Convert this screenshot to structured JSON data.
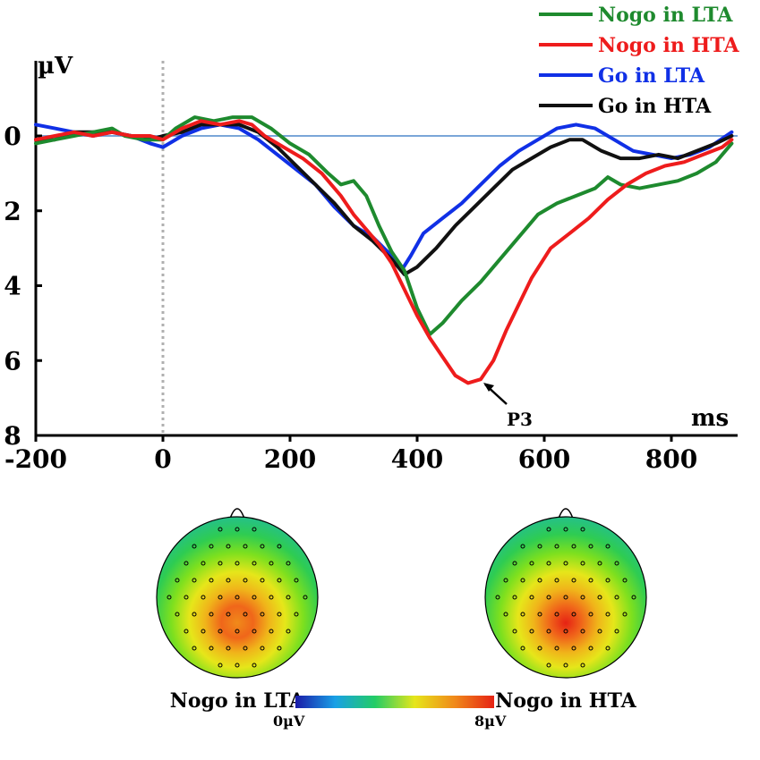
{
  "chart_data": [
    {
      "type": "line",
      "title": "",
      "xlabel": "ms",
      "ylabel": "µV",
      "xlim": [
        -200,
        900
      ],
      "ylim": [
        8,
        -2
      ],
      "y_inverted": true,
      "x_ticks": [
        -200,
        0,
        200,
        400,
        600,
        800
      ],
      "y_ticks": [
        0,
        2,
        4,
        6,
        8
      ],
      "x_tick_labels": [
        "-200",
        "0",
        "200",
        "400",
        "600",
        "800"
      ],
      "y_tick_labels": [
        "0",
        "2",
        "4",
        "6",
        "8"
      ],
      "zero_reference": 0,
      "stimulus_onset_ms": 0,
      "legend_position": "top-right",
      "series": [
        {
          "name": "Nogo in LTA",
          "color": "#1e8a2e",
          "points": [
            [
              -200,
              0.2
            ],
            [
              -170,
              0.1
            ],
            [
              -140,
              0.0
            ],
            [
              -110,
              -0.1
            ],
            [
              -80,
              -0.2
            ],
            [
              -60,
              0.0
            ],
            [
              -30,
              0.1
            ],
            [
              0,
              0.1
            ],
            [
              20,
              -0.2
            ],
            [
              50,
              -0.5
            ],
            [
              80,
              -0.4
            ],
            [
              110,
              -0.5
            ],
            [
              140,
              -0.5
            ],
            [
              170,
              -0.2
            ],
            [
              200,
              0.2
            ],
            [
              230,
              0.5
            ],
            [
              260,
              1.0
            ],
            [
              280,
              1.3
            ],
            [
              300,
              1.2
            ],
            [
              320,
              1.6
            ],
            [
              340,
              2.4
            ],
            [
              360,
              3.1
            ],
            [
              380,
              3.6
            ],
            [
              400,
              4.6
            ],
            [
              420,
              5.3
            ],
            [
              440,
              5.0
            ],
            [
              470,
              4.4
            ],
            [
              500,
              3.9
            ],
            [
              530,
              3.3
            ],
            [
              560,
              2.7
            ],
            [
              590,
              2.1
            ],
            [
              620,
              1.8
            ],
            [
              650,
              1.6
            ],
            [
              680,
              1.4
            ],
            [
              700,
              1.1
            ],
            [
              720,
              1.3
            ],
            [
              750,
              1.4
            ],
            [
              780,
              1.3
            ],
            [
              810,
              1.2
            ],
            [
              840,
              1.0
            ],
            [
              870,
              0.7
            ],
            [
              895,
              0.2
            ]
          ]
        },
        {
          "name": "Nogo in HTA",
          "color": "#ee1c1c",
          "points": [
            [
              -200,
              0.1
            ],
            [
              -170,
              0.0
            ],
            [
              -140,
              -0.1
            ],
            [
              -110,
              0.0
            ],
            [
              -80,
              -0.1
            ],
            [
              -50,
              0.0
            ],
            [
              -20,
              0.0
            ],
            [
              0,
              0.1
            ],
            [
              30,
              -0.2
            ],
            [
              60,
              -0.4
            ],
            [
              90,
              -0.3
            ],
            [
              120,
              -0.4
            ],
            [
              140,
              -0.3
            ],
            [
              160,
              0.0
            ],
            [
              190,
              0.3
            ],
            [
              220,
              0.6
            ],
            [
              250,
              1.0
            ],
            [
              280,
              1.6
            ],
            [
              300,
              2.1
            ],
            [
              320,
              2.5
            ],
            [
              340,
              2.9
            ],
            [
              360,
              3.4
            ],
            [
              380,
              4.1
            ],
            [
              400,
              4.8
            ],
            [
              420,
              5.4
            ],
            [
              440,
              5.9
            ],
            [
              460,
              6.4
            ],
            [
              480,
              6.6
            ],
            [
              500,
              6.5
            ],
            [
              520,
              6.0
            ],
            [
              540,
              5.2
            ],
            [
              560,
              4.5
            ],
            [
              580,
              3.8
            ],
            [
              610,
              3.0
            ],
            [
              640,
              2.6
            ],
            [
              670,
              2.2
            ],
            [
              700,
              1.7
            ],
            [
              730,
              1.3
            ],
            [
              760,
              1.0
            ],
            [
              790,
              0.8
            ],
            [
              820,
              0.7
            ],
            [
              850,
              0.5
            ],
            [
              880,
              0.3
            ],
            [
              895,
              0.1
            ]
          ]
        },
        {
          "name": "Go in LTA",
          "color": "#1030e6",
          "points": [
            [
              -200,
              -0.3
            ],
            [
              -170,
              -0.2
            ],
            [
              -140,
              -0.1
            ],
            [
              -110,
              0.0
            ],
            [
              -80,
              -0.1
            ],
            [
              -50,
              0.0
            ],
            [
              -20,
              0.2
            ],
            [
              0,
              0.3
            ],
            [
              30,
              0.0
            ],
            [
              60,
              -0.2
            ],
            [
              90,
              -0.3
            ],
            [
              120,
              -0.2
            ],
            [
              150,
              0.1
            ],
            [
              180,
              0.5
            ],
            [
              210,
              0.9
            ],
            [
              240,
              1.3
            ],
            [
              270,
              1.9
            ],
            [
              300,
              2.4
            ],
            [
              330,
              2.7
            ],
            [
              360,
              3.2
            ],
            [
              375,
              3.6
            ],
            [
              390,
              3.2
            ],
            [
              410,
              2.6
            ],
            [
              440,
              2.2
            ],
            [
              470,
              1.8
            ],
            [
              500,
              1.3
            ],
            [
              530,
              0.8
            ],
            [
              560,
              0.4
            ],
            [
              590,
              0.1
            ],
            [
              620,
              -0.2
            ],
            [
              650,
              -0.3
            ],
            [
              680,
              -0.2
            ],
            [
              710,
              0.1
            ],
            [
              740,
              0.4
            ],
            [
              770,
              0.5
            ],
            [
              800,
              0.6
            ],
            [
              830,
              0.5
            ],
            [
              860,
              0.3
            ],
            [
              895,
              -0.1
            ]
          ]
        },
        {
          "name": "Go in HTA",
          "color": "#111111",
          "points": [
            [
              -200,
              0.1
            ],
            [
              -170,
              0.1
            ],
            [
              -140,
              -0.1
            ],
            [
              -110,
              -0.1
            ],
            [
              -80,
              -0.1
            ],
            [
              -50,
              0.0
            ],
            [
              -20,
              0.1
            ],
            [
              0,
              0.0
            ],
            [
              30,
              -0.1
            ],
            [
              60,
              -0.3
            ],
            [
              90,
              -0.3
            ],
            [
              120,
              -0.3
            ],
            [
              150,
              -0.1
            ],
            [
              180,
              0.3
            ],
            [
              210,
              0.8
            ],
            [
              240,
              1.3
            ],
            [
              270,
              1.8
            ],
            [
              300,
              2.4
            ],
            [
              330,
              2.8
            ],
            [
              360,
              3.3
            ],
            [
              380,
              3.7
            ],
            [
              400,
              3.5
            ],
            [
              430,
              3.0
            ],
            [
              460,
              2.4
            ],
            [
              490,
              1.9
            ],
            [
              520,
              1.4
            ],
            [
              550,
              0.9
            ],
            [
              580,
              0.6
            ],
            [
              610,
              0.3
            ],
            [
              640,
              0.1
            ],
            [
              660,
              0.1
            ],
            [
              690,
              0.4
            ],
            [
              720,
              0.6
            ],
            [
              750,
              0.6
            ],
            [
              780,
              0.5
            ],
            [
              810,
              0.6
            ],
            [
              840,
              0.4
            ],
            [
              870,
              0.2
            ],
            [
              895,
              0.0
            ]
          ]
        }
      ],
      "annotations": [
        {
          "text": "P3",
          "target_series": "Nogo in HTA",
          "x": 480,
          "y": 6.6
        }
      ]
    },
    {
      "type": "heatmap",
      "subtype": "scalp topography",
      "colorbar": {
        "min_label": "0µV",
        "max_label": "8µV",
        "min": 0,
        "max": 8,
        "colors": [
          "#1a1aa8",
          "#19a0e6",
          "#22cc66",
          "#e6e61a",
          "#f08a1a",
          "#e62214"
        ]
      },
      "maps": [
        {
          "title": "Nogo in LTA",
          "peak_value_uv": 5.3,
          "peak_location": "centro-parietal"
        },
        {
          "title": "Nogo in HTA",
          "peak_value_uv": 6.6,
          "peak_location": "centro-parietal"
        }
      ]
    }
  ]
}
